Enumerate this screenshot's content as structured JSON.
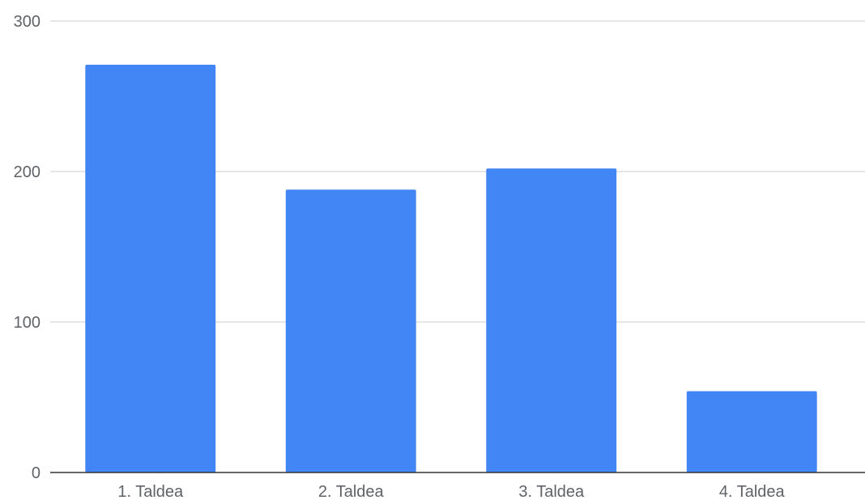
{
  "chart_data": {
    "type": "bar",
    "categories": [
      "1. Taldea",
      "2. Taldea",
      "3. Taldea",
      "4. Taldea"
    ],
    "values": [
      271,
      188,
      202,
      54
    ],
    "title": "",
    "xlabel": "",
    "ylabel": "",
    "ylim": [
      0,
      300
    ],
    "yticks": [
      "0",
      "100",
      "200",
      "300"
    ],
    "grid": true,
    "legend": "none",
    "bar_color": "#4285f4"
  }
}
